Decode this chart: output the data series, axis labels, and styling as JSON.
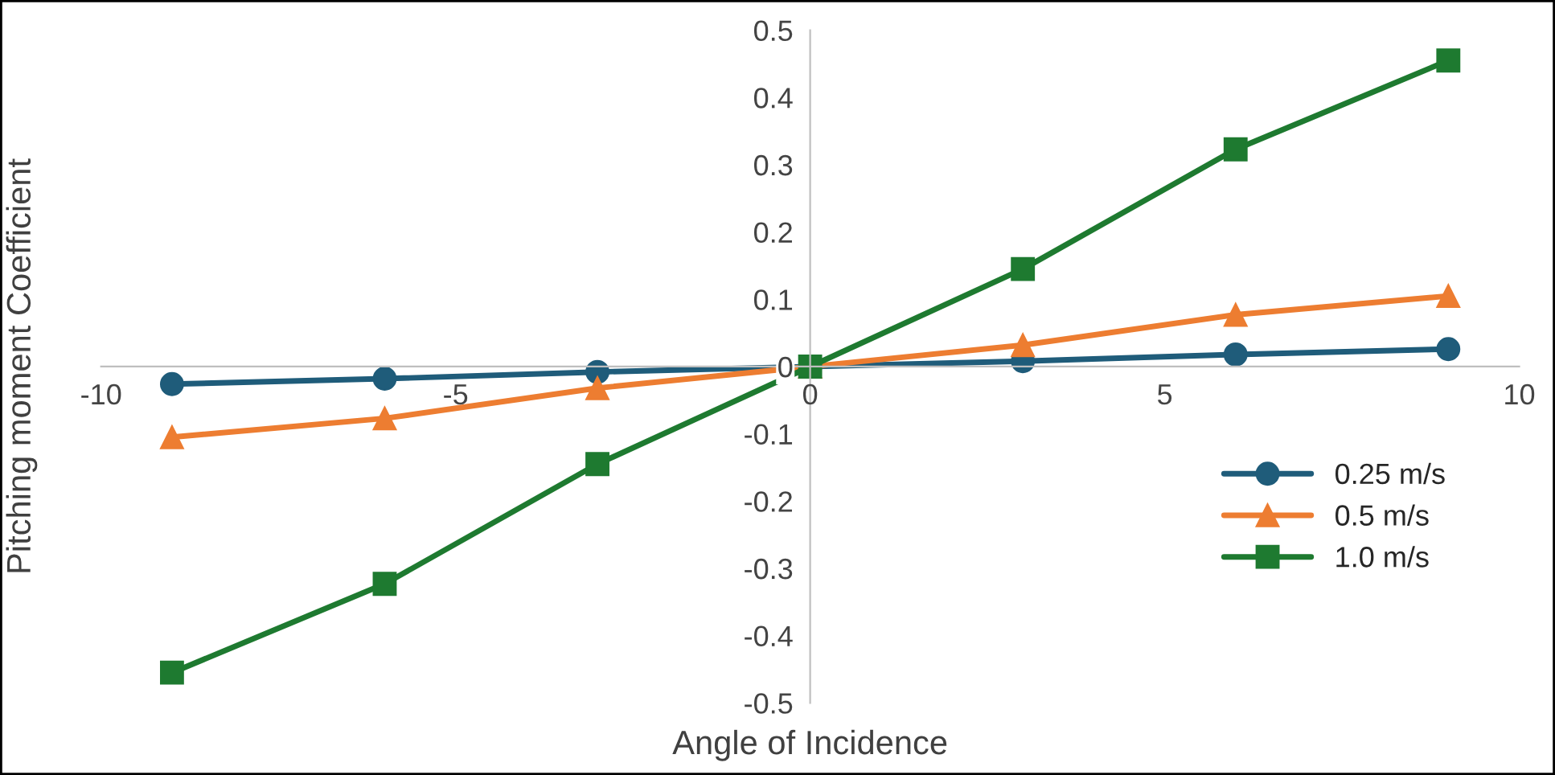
{
  "chart_data": {
    "type": "line",
    "xlabel": "Angle of Incidence",
    "ylabel": "Pitching moment Coefficient",
    "x": [
      -9,
      -6,
      -3,
      0,
      3,
      6,
      9
    ],
    "series": [
      {
        "name": "0.25 m/s",
        "color": "#1f5c7a",
        "marker": "circle",
        "values": [
          -0.026,
          -0.018,
          -0.008,
          0,
          0.008,
          0.018,
          0.026
        ]
      },
      {
        "name": "0.5 m/s",
        "color": "#ed7d31",
        "marker": "triangle",
        "values": [
          -0.105,
          -0.077,
          -0.032,
          0,
          0.032,
          0.077,
          0.105
        ]
      },
      {
        "name": "1.0 m/s",
        "color": "#1e7a30",
        "marker": "square",
        "values": [
          -0.455,
          -0.323,
          -0.145,
          0,
          0.145,
          0.323,
          0.455
        ]
      }
    ],
    "xlim": [
      -10,
      10
    ],
    "xticks": [
      -10,
      -5,
      0,
      5,
      10
    ],
    "ylim": [
      -0.5,
      0.5
    ],
    "yticks": [
      -0.5,
      -0.4,
      -0.3,
      -0.2,
      -0.1,
      0,
      0.1,
      0.2,
      0.3,
      0.4,
      0.5
    ],
    "grid": false,
    "legend": "bottom right",
    "line_style": "solid"
  }
}
